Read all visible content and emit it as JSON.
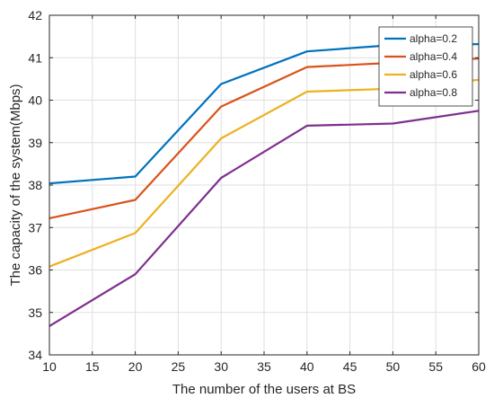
{
  "chart_data": {
    "type": "line",
    "xlabel": "The number of the users at BS",
    "ylabel": "The capacity of the system(Mbps)",
    "xlim": [
      10,
      60
    ],
    "ylim": [
      34,
      42
    ],
    "xticks": [
      "10",
      "15",
      "20",
      "25",
      "30",
      "35",
      "40",
      "45",
      "50",
      "55",
      "60"
    ],
    "yticks": [
      "34",
      "35",
      "36",
      "37",
      "38",
      "39",
      "40",
      "41",
      "42"
    ],
    "grid": true,
    "legend_position": "top-right",
    "x": [
      10,
      20,
      30,
      40,
      50,
      60
    ],
    "series": [
      {
        "name": "alpha=0.2",
        "color": "#0072BD",
        "values": [
          38.04,
          38.2,
          40.38,
          41.15,
          41.3,
          41.32
        ]
      },
      {
        "name": "alpha=0.4",
        "color": "#D95319",
        "values": [
          37.22,
          37.65,
          39.85,
          40.78,
          40.88,
          40.98
        ]
      },
      {
        "name": "alpha=0.6",
        "color": "#EDB120",
        "values": [
          36.08,
          36.87,
          39.1,
          40.2,
          40.27,
          40.48
        ]
      },
      {
        "name": "alpha=0.8",
        "color": "#7E2F8E",
        "values": [
          34.68,
          35.9,
          38.17,
          39.4,
          39.45,
          39.75
        ]
      }
    ]
  }
}
